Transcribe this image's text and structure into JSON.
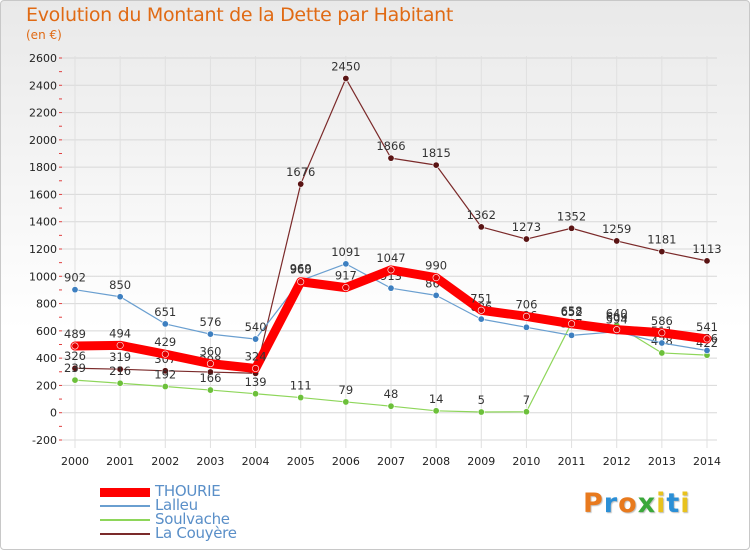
{
  "header": {
    "title": "Evolution du Montant de la Dette par Habitant",
    "unit": "(en €)"
  },
  "logo": {
    "text": "Proxiti",
    "letters": [
      "P",
      "r",
      "o",
      "x",
      "i",
      "t",
      "i"
    ],
    "colors": [
      "#e87a1e",
      "#2b8fd6",
      "#e87a1e",
      "#3aa83a",
      "#e8c21e",
      "#2b8fd6",
      "#e8c21e"
    ]
  },
  "chart_data": {
    "type": "line",
    "title": "Evolution du Montant de la Dette par Habitant",
    "ylabel": "(en €)",
    "xlabel": "",
    "x": [
      "2000",
      "2001",
      "2002",
      "2003",
      "2004",
      "2005",
      "2006",
      "2007",
      "2008",
      "2009",
      "2010",
      "2011",
      "2012",
      "2013",
      "2014"
    ],
    "ylim": [
      -200,
      2600
    ],
    "yticks": [
      -200,
      0,
      200,
      400,
      600,
      800,
      1000,
      1200,
      1400,
      1600,
      1800,
      2000,
      2200,
      2400,
      2600
    ],
    "grid": true,
    "legend_position": "bottom-left",
    "series": [
      {
        "name": "La Couyère",
        "color": "#7b2a2a",
        "marker": "#5a1414",
        "width": 1.2,
        "values": [
          326,
          319,
          307,
          298,
          289,
          1676,
          2450,
          1866,
          1815,
          1362,
          1273,
          1352,
          1259,
          1181,
          1113
        ],
        "labels": [
          "326",
          "319",
          "307",
          "298",
          "",
          "1676",
          "2450",
          "1866",
          "1815",
          "1362",
          "1273",
          "1352",
          "1259",
          "1181",
          "1113"
        ]
      },
      {
        "name": "Soulvache",
        "color": "#8ed65a",
        "marker": "#6cc03a",
        "width": 1.2,
        "values": [
          239,
          216,
          192,
          166,
          139,
          111,
          79,
          48,
          14,
          5,
          7,
          658,
          640,
          438,
          422
        ],
        "labels": [
          "239",
          "216",
          "192",
          "166",
          "139",
          "111",
          "79",
          "48",
          "14",
          "5",
          "7",
          "658",
          "640",
          "438",
          "422"
        ]
      },
      {
        "name": "Lalleu",
        "color": "#6a9fd0",
        "marker": "#3d7fc0",
        "width": 1.2,
        "values": [
          902,
          850,
          651,
          576,
          540,
          969,
          1091,
          913,
          860,
          686,
          626,
          567,
          594,
          511,
          456
        ],
        "labels": [
          "902",
          "850",
          "651",
          "576",
          "540",
          "969",
          "1091",
          "913",
          "860",
          "686",
          "626",
          "567",
          "594",
          "511",
          "456"
        ]
      },
      {
        "name": "THOURIE",
        "color": "#ff0000",
        "marker": "#e00000",
        "width": 9,
        "values": [
          489,
          494,
          429,
          360,
          324,
          960,
          917,
          1047,
          990,
          751,
          706,
          652,
          609,
          586,
          541
        ],
        "labels": [
          "489",
          "494",
          "429",
          "360",
          "324",
          "960",
          "917",
          "1047",
          "990",
          "751",
          "706",
          "652",
          "609",
          "586",
          "541"
        ]
      }
    ],
    "legend": [
      {
        "name": "THOURIE",
        "color": "#ff0000",
        "width": 9
      },
      {
        "name": "Lalleu",
        "color": "#6a9fd0",
        "width": 2
      },
      {
        "name": "Soulvache",
        "color": "#8ed65a",
        "width": 2
      },
      {
        "name": "La Couyère",
        "color": "#7b2a2a",
        "width": 2
      }
    ]
  }
}
